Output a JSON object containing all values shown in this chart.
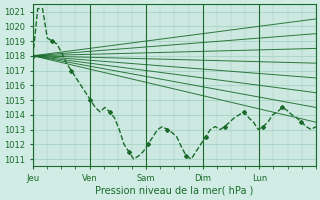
{
  "xlabel": "Pression niveau de la mer( hPa )",
  "bg_color": "#d0ece4",
  "plot_bg_color": "#cce8e0",
  "grid_color": "#9fcfbf",
  "line_color": "#1a6b2a",
  "ylim": [
    1010.5,
    1021.5
  ],
  "yticks": [
    1011,
    1012,
    1013,
    1014,
    1015,
    1016,
    1017,
    1018,
    1019,
    1020,
    1021
  ],
  "day_labels": [
    "Jeu",
    "Ven",
    "Sam",
    "Dim",
    "Lun"
  ],
  "day_positions": [
    0,
    24,
    48,
    72,
    96
  ],
  "total_hours": 120,
  "straight_lines": [
    [
      1018.0,
      1020.5
    ],
    [
      1018.0,
      1019.5
    ],
    [
      1018.0,
      1018.5
    ],
    [
      1018.0,
      1017.5
    ],
    [
      1018.0,
      1016.5
    ],
    [
      1018.0,
      1015.5
    ],
    [
      1018.0,
      1014.5
    ],
    [
      1018.0,
      1013.5
    ]
  ],
  "main_line": [
    1018.0,
    1021.2,
    1021.2,
    1019.2,
    1019.0,
    1018.8,
    1018.2,
    1017.5,
    1017.0,
    1016.5,
    1016.0,
    1015.5,
    1015.0,
    1014.5,
    1014.2,
    1014.5,
    1014.2,
    1013.8,
    1013.0,
    1012.0,
    1011.5,
    1011.0,
    1011.2,
    1011.5,
    1012.0,
    1012.5,
    1013.0,
    1013.2,
    1013.0,
    1012.8,
    1012.5,
    1011.8,
    1011.2,
    1011.0,
    1011.5,
    1012.0,
    1012.5,
    1013.0,
    1013.2,
    1013.0,
    1013.2,
    1013.5,
    1013.8,
    1014.0,
    1014.2,
    1013.8,
    1013.5,
    1013.0,
    1013.2,
    1013.5,
    1014.0,
    1014.2,
    1014.5,
    1014.3,
    1014.0,
    1013.8,
    1013.5,
    1013.2,
    1013.0,
    1013.2
  ]
}
